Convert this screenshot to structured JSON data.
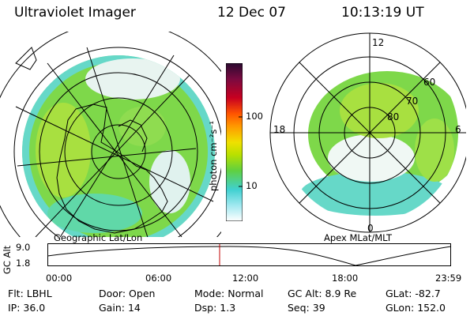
{
  "header": {
    "title": "Ultraviolet Imager",
    "date": "12 Dec 07",
    "time": "10:13:19 UT"
  },
  "left_panel": {
    "label": "Geographic Lat/Lon"
  },
  "right_panel": {
    "label": "Apex MLat/MLT",
    "mlt_labels": {
      "top": "12",
      "left": "18",
      "right": "6",
      "bottom": "0"
    },
    "lat_labels": [
      "60",
      "70",
      "80"
    ]
  },
  "colorbar": {
    "unit": "photon cm⁻²s⁻¹",
    "ticks": [
      "100",
      "10"
    ],
    "colors": [
      "#2a0a30",
      "#7a0a40",
      "#c80020",
      "#ff5500",
      "#ff9900",
      "#f0e000",
      "#b8e000",
      "#60d040",
      "#40d0d0",
      "#a0e8f0",
      "#ffffff"
    ]
  },
  "altitude_plot": {
    "ylabel": "GC Alt",
    "y_ticks": [
      "9.0",
      "1.8"
    ],
    "x_ticks": [
      "00:00",
      "06:00",
      "12:00",
      "18:00",
      "23:59"
    ],
    "marker_color": "#c00000"
  },
  "info": {
    "row1": [
      {
        "key": "Flt:",
        "value": "LBHL"
      },
      {
        "key": "Door:",
        "value": "Open"
      },
      {
        "key": "Mode:",
        "value": "Normal"
      },
      {
        "key": "GC Alt:",
        "value": "8.9 Re"
      },
      {
        "key": "GLat:",
        "value": "-82.7"
      }
    ],
    "row2": [
      {
        "key": "IP:",
        "value": "36.0"
      },
      {
        "key": "Gain:",
        "value": "14"
      },
      {
        "key": "Dsp:",
        "value": "1.3"
      },
      {
        "key": "Seq:",
        "value": "39"
      },
      {
        "key": "GLon:",
        "value": "152.0"
      }
    ]
  }
}
